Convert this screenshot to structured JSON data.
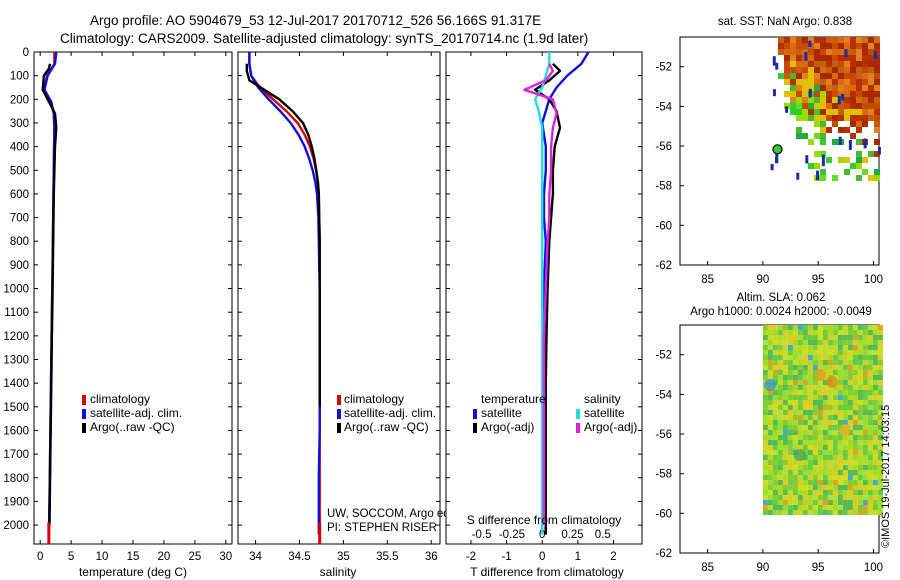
{
  "header": {
    "line1": "Argo profile: AO 5904679_53 12-Jul-2017 20170712_526 56.166S 91.317E",
    "line2": "Climatology: CARS2009. Satellite-adjusted climatology: synTS_20170714.nc (1.9d later)"
  },
  "colors": {
    "climatology": "#dd0000",
    "satellite": "#1010dd",
    "argo": "#000000",
    "sal_satellite": "#22dddd",
    "sal_argo": "#dd22dd"
  },
  "legend": {
    "climatology": "climatology",
    "satellite_adj": "satellite-adj. clim.",
    "argo_raw": "Argo(..raw -QC)",
    "temperature_head": "temperature",
    "salinity_head": "salinity",
    "satellite": "satellite",
    "argo_adj": "Argo(-adj)"
  },
  "credits": {
    "line1": "UW, SOCCOM, Argo equivalent",
    "line2": "PI: STEPHEN RISER",
    "imos": "©IMOS 19-Jul-2017 14:03:15"
  },
  "chart_data": [
    {
      "type": "line",
      "name": "temperature",
      "xlabel": "temperature (deg C)",
      "xlim": [
        -1,
        31
      ],
      "ylim": [
        2080,
        0
      ],
      "xticks": [
        "0",
        "5",
        "10",
        "15",
        "20",
        "25",
        "30"
      ],
      "yticks": [
        "0",
        "100",
        "200",
        "300",
        "400",
        "500",
        "600",
        "700",
        "800",
        "900",
        "1000",
        "1100",
        "1200",
        "1300",
        "1400",
        "1500",
        "1600",
        "1700",
        "1800",
        "1900",
        "2000"
      ],
      "series": [
        {
          "name": "climatology",
          "color": "#dd0000",
          "x": [
            2.3,
            2.3,
            1.1,
            0.6,
            1.7,
            2.2,
            2.3,
            2.25,
            2.2,
            2.15,
            2.1,
            2.05,
            2.0,
            1.95,
            1.9,
            1.85,
            1.8,
            1.75,
            1.7,
            1.65,
            1.6,
            1.55,
            1.5,
            1.4
          ],
          "y": [
            0,
            50,
            100,
            160,
            210,
            260,
            320,
            400,
            500,
            600,
            700,
            800,
            900,
            1000,
            1100,
            1200,
            1300,
            1400,
            1500,
            1600,
            1700,
            1800,
            1900,
            2040
          ]
        },
        {
          "name": "satellite-adj. clim.",
          "color": "#1010dd",
          "x": [
            2.6,
            2.4,
            1.2,
            0.7,
            1.8,
            2.2,
            2.3,
            2.25,
            2.2,
            2.15,
            2.1,
            2.05,
            2.0,
            1.95,
            1.9,
            1.85,
            1.8,
            1.75,
            1.7,
            1.65,
            1.6,
            1.55,
            1.5,
            1.4
          ],
          "y": [
            0,
            50,
            100,
            160,
            210,
            260,
            320,
            400,
            500,
            600,
            700,
            800,
            900,
            1000,
            1100,
            1200,
            1300,
            1400,
            1500,
            1600,
            1700,
            1800,
            1900,
            2040
          ]
        },
        {
          "name": "Argo(..raw -QC)",
          "color": "#000000",
          "x": [
            1.6,
            1.4,
            0.6,
            0.4,
            1.4,
            2.4,
            2.6,
            2.4,
            2.3,
            2.2,
            2.15,
            2.1,
            2.05,
            2.0,
            1.95,
            1.9,
            1.85,
            1.8,
            1.75,
            1.7,
            1.65,
            1.6,
            1.55,
            1.5
          ],
          "y": [
            50,
            70,
            100,
            160,
            210,
            260,
            320,
            400,
            500,
            600,
            700,
            800,
            900,
            1000,
            1100,
            1200,
            1300,
            1400,
            1500,
            1600,
            1700,
            1800,
            1900,
            2000
          ]
        }
      ]
    },
    {
      "type": "line",
      "name": "salinity",
      "xlabel": "salinity",
      "xlim": [
        33.8,
        36.1
      ],
      "ylim": [
        2080,
        0
      ],
      "xticks": [
        "34",
        "34.5",
        "35",
        "35.5",
        "36"
      ],
      "series": [
        {
          "name": "climatology",
          "color": "#dd0000",
          "x": [
            33.93,
            33.93,
            33.95,
            34.05,
            34.2,
            34.35,
            34.48,
            34.56,
            34.62,
            34.66,
            34.69,
            34.71,
            34.72,
            34.725,
            34.73,
            34.73,
            34.73,
            34.73,
            34.73,
            34.73,
            34.73,
            34.73,
            34.73,
            34.73
          ],
          "y": [
            0,
            50,
            100,
            150,
            200,
            250,
            300,
            350,
            400,
            450,
            500,
            550,
            600,
            700,
            800,
            900,
            1000,
            1200,
            1400,
            1600,
            1800,
            1900,
            2000,
            2040
          ]
        },
        {
          "name": "satellite-adj. clim.",
          "color": "#1010dd",
          "x": [
            33.93,
            33.93,
            33.95,
            34.03,
            34.15,
            34.28,
            34.4,
            34.49,
            34.56,
            34.61,
            34.65,
            34.68,
            34.7,
            34.715,
            34.72,
            34.725,
            34.73,
            34.73,
            34.73,
            34.73,
            34.72,
            34.72,
            34.72,
            34.72
          ],
          "y": [
            0,
            50,
            100,
            150,
            200,
            250,
            300,
            350,
            400,
            450,
            500,
            550,
            600,
            700,
            800,
            900,
            1000,
            1200,
            1400,
            1600,
            1800,
            1900,
            2000,
            2040
          ]
        },
        {
          "name": "Argo(..raw -QC)",
          "color": "#000000",
          "x": [
            33.9,
            33.9,
            33.93,
            34.1,
            34.27,
            34.42,
            34.54,
            34.6,
            34.64,
            34.67,
            34.69,
            34.71,
            34.72,
            34.725,
            34.73,
            34.73,
            34.73,
            34.73,
            34.73,
            34.73
          ],
          "y": [
            50,
            80,
            120,
            160,
            200,
            250,
            300,
            350,
            400,
            450,
            500,
            550,
            600,
            700,
            800,
            900,
            1000,
            1200,
            1400,
            1500
          ]
        }
      ]
    },
    {
      "type": "line",
      "name": "difference",
      "xlabel": "T difference from climatology",
      "xlabel2": "S difference from climatology",
      "xlim": [
        -2.7,
        2.8
      ],
      "ylim": [
        2080,
        0
      ],
      "xticks": [
        "-2",
        "-1",
        "0",
        "1",
        "2"
      ],
      "xticks2": [
        "-0.5",
        "-0.25",
        "0",
        "0.25",
        "0.5"
      ],
      "series": [
        {
          "name": "temperature satellite",
          "color": "#1010dd",
          "x": [
            1.3,
            1.1,
            0.7,
            0.4,
            0.2,
            0.1,
            0.0,
            0.1,
            0.1,
            0.05,
            0.05,
            0.1,
            0.05,
            0.05,
            0.1,
            0.1,
            0.1,
            0.1,
            0.1,
            0.1
          ],
          "y": [
            0,
            50,
            100,
            150,
            200,
            250,
            300,
            400,
            500,
            600,
            700,
            800,
            1000,
            1200,
            1400,
            1600,
            1800,
            1900,
            2000,
            2040
          ]
        },
        {
          "name": "temperature Argo(-adj)",
          "color": "#000000",
          "x": [
            0.3,
            0.5,
            0.2,
            -0.2,
            0.2,
            0.4,
            0.5,
            0.35,
            0.3,
            0.3,
            0.25,
            0.2,
            0.15,
            0.12,
            0.1,
            0.1,
            0.1,
            0.1,
            0.1,
            0.1
          ],
          "y": [
            50,
            80,
            120,
            160,
            200,
            250,
            320,
            400,
            500,
            600,
            700,
            800,
            1000,
            1200,
            1400,
            1600,
            1800,
            1900,
            2000,
            2040
          ]
        },
        {
          "name": "salinity satellite",
          "color": "#22dddd",
          "x": [
            0.2,
            0.2,
            0.1,
            0.0,
            -0.2,
            -0.1,
            0.0,
            0.0,
            0.0,
            0.0,
            0.0,
            0.0,
            0.0,
            0.0,
            0.0,
            0.0,
            0.0,
            0.0,
            0.0,
            0.0
          ],
          "y": [
            0,
            50,
            100,
            150,
            200,
            250,
            320,
            400,
            500,
            600,
            700,
            800,
            1000,
            1200,
            1400,
            1600,
            1800,
            1900,
            2000,
            2040
          ]
        },
        {
          "name": "salinity Argo(-adj)",
          "color": "#dd22dd",
          "x": [
            0.2,
            0.3,
            0.1,
            -0.5,
            0.3,
            0.4,
            0.3,
            0.25,
            0.25,
            0.2,
            0.2,
            0.15,
            0.1,
            0.05,
            0.05,
            0.05,
            0.05,
            0.05,
            0.05
          ],
          "y": [
            50,
            80,
            120,
            160,
            200,
            260,
            320,
            400,
            500,
            600,
            700,
            800,
            1000,
            1200,
            1400,
            1600,
            1800,
            1900,
            2000
          ]
        }
      ]
    },
    {
      "type": "heatmap",
      "name": "sst_map",
      "title": "sat. SST: NaN Argo: 0.838",
      "xlim": [
        82.5,
        100.5
      ],
      "ylim": [
        -62,
        -50.5
      ],
      "xticks": [
        "85",
        "90",
        "95",
        "100"
      ],
      "yticks": [
        "-52",
        "-54",
        "-56",
        "-58",
        "-60",
        "-62"
      ],
      "argo_position": {
        "lon": 91.317,
        "lat": -56.166
      }
    },
    {
      "type": "heatmap",
      "name": "sla_map",
      "title": "Altim. SLA: 0.062",
      "subtitle": "Argo h1000: 0.0024 h2000: -0.0049",
      "xlim": [
        82.5,
        100.5
      ],
      "ylim": [
        -62,
        -50.5
      ],
      "xticks": [
        "85",
        "90",
        "95",
        "100"
      ],
      "yticks": [
        "-52",
        "-54",
        "-56",
        "-58",
        "-60",
        "-62"
      ],
      "data_extent": {
        "lon": [
          90,
          100.5
        ],
        "lat": [
          -60,
          -50.5
        ]
      }
    }
  ]
}
